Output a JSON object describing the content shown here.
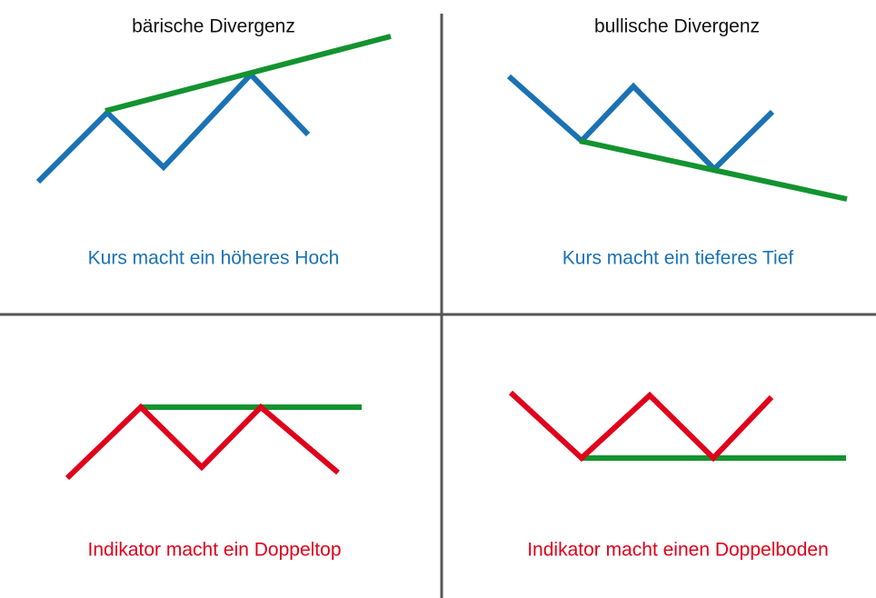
{
  "panels": [
    {
      "title": "bärische Divergenz",
      "caption": "Kurs macht ein höheres Hoch"
    },
    {
      "title": "bullische Divergenz",
      "caption": "Kurs macht ein tieferes Tief"
    },
    {
      "caption": "Indikator macht ein Doppeltop"
    },
    {
      "caption": "Indikator macht einen Doppelboden"
    }
  ]
}
